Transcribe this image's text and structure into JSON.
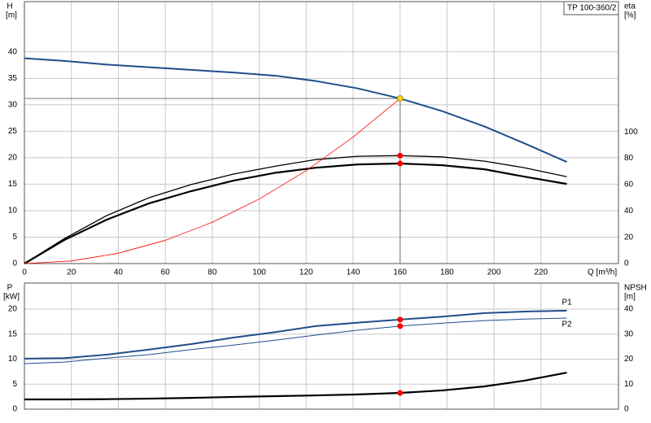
{
  "chart_data": [
    {
      "type": "line",
      "title": "TP 100-360/2",
      "xlabel": "Q [m³/h]",
      "ylabel": "H",
      "yunit": "[m]",
      "y2label": "eta",
      "y2unit": "[%]",
      "xlim": [
        0,
        253
      ],
      "ylim": [
        0,
        49.5
      ],
      "y2lim": [
        0,
        199
      ],
      "xticks": [
        0,
        20,
        40,
        60,
        80,
        100,
        120,
        140,
        160,
        180,
        200,
        220
      ],
      "yticks": [
        0,
        5,
        10,
        15,
        20,
        25,
        30,
        35,
        40
      ],
      "y2ticks": [
        0,
        20,
        40,
        60,
        80,
        100
      ],
      "grid": true,
      "duty_q": 160,
      "crosshair": true,
      "x": [
        0,
        17,
        35,
        53,
        71,
        89,
        107,
        124,
        142,
        160,
        178,
        196,
        213,
        231
      ],
      "series": [
        {
          "color": "#1f4e8c",
          "width": 2,
          "marker_color": "#ffd700",
          "values": [
            38.8,
            38.3,
            37.6,
            37.1,
            36.6,
            36.1,
            35.5,
            34.5,
            33.1,
            31.2,
            28.8,
            25.9,
            22.7,
            19.2
          ]
        },
        {
          "color": "#000000",
          "width": 1.3,
          "axis": "y2",
          "marker_color": "#ff0000",
          "values": [
            0,
            19,
            36.4,
            50,
            60,
            68,
            74,
            79,
            81.5,
            82,
            81,
            77.8,
            72.8,
            66
          ]
        },
        {
          "color": "#000000",
          "width": 2.2,
          "axis": "y2",
          "marker_color": "#ff0000",
          "values": [
            0,
            17.9,
            33.3,
            45.7,
            55,
            63,
            69,
            72.8,
            75.3,
            76,
            74.7,
            71.6,
            66,
            60.5
          ]
        },
        {
          "color": "#ff0000",
          "width": 0.8,
          "x": [
            0,
            20,
            40,
            60,
            80,
            100,
            120,
            140,
            160
          ],
          "values": [
            0,
            0.49,
            1.95,
            4.39,
            7.8,
            12.19,
            17.55,
            23.89,
            31.2
          ]
        }
      ]
    },
    {
      "type": "line",
      "ylabel": "P",
      "yunit": "[kW]",
      "y2label": "NPSH",
      "y2unit": "[m]",
      "xlim": [
        0,
        253
      ],
      "ylim": [
        0,
        25.2
      ],
      "y2lim": [
        0,
        50.4
      ],
      "yticks": [
        0,
        5,
        10,
        15,
        20
      ],
      "y2ticks": [
        0,
        10,
        20,
        30,
        40
      ],
      "grid": true,
      "duty_q": 160,
      "x": [
        0,
        17,
        35,
        53,
        71,
        89,
        107,
        124,
        142,
        160,
        178,
        196,
        213,
        231
      ],
      "series": [
        {
          "name": "P1",
          "color": "#1f4e8c",
          "width": 2,
          "marker_color": "#ff0000",
          "values": [
            10.1,
            10.2,
            10.9,
            11.9,
            13,
            14.3,
            15.4,
            16.6,
            17.3,
            17.9,
            18.5,
            19.2,
            19.5,
            19.7
          ]
        },
        {
          "name": "P2",
          "color": "#1f4e8c",
          "width": 1,
          "marker_color": "#ff0000",
          "values": [
            9.1,
            9.4,
            10.2,
            10.9,
            11.9,
            12.8,
            13.8,
            14.8,
            15.8,
            16.6,
            17.2,
            17.7,
            18,
            18.2
          ]
        },
        {
          "color": "#000000",
          "width": 2.2,
          "axis": "y2",
          "marker_color": "#ff0000",
          "values": [
            3.9,
            3.9,
            4,
            4.2,
            4.5,
            4.9,
            5.2,
            5.5,
            5.9,
            6.5,
            7.5,
            9.1,
            11.4,
            14.6
          ]
        }
      ]
    }
  ]
}
